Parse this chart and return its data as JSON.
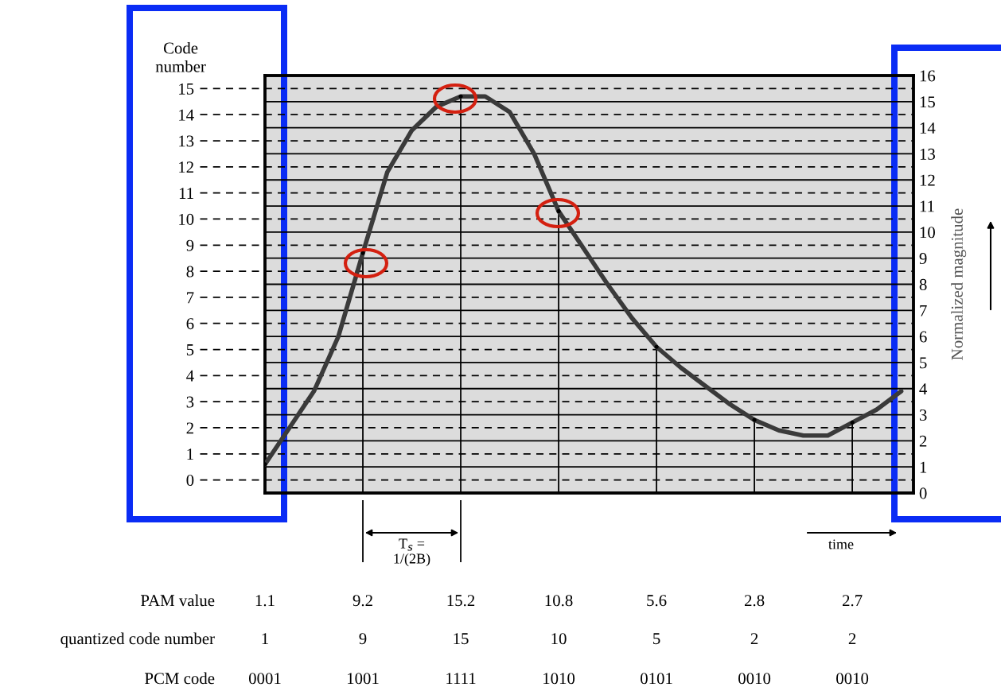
{
  "chart_data": {
    "type": "line",
    "ylabel": "Code\nnumber",
    "y2label": "Normalized magnitude",
    "tick_labels": "y",
    "categories": [
      null,
      null,
      null,
      null,
      null,
      null,
      null,
      null,
      null,
      null,
      null,
      null,
      null,
      null,
      null,
      null,
      null,
      null,
      null,
      null,
      null,
      null,
      null,
      null,
      null,
      null,
      null
    ],
    "ylim": [
      0,
      16
    ],
    "yticks": [
      {
        "value": 0.5,
        "label": "0"
      },
      {
        "value": 1.5,
        "label": "1"
      },
      {
        "value": 2.5,
        "label": "2"
      },
      {
        "value": 3.5,
        "label": "3"
      },
      {
        "value": 4.5,
        "label": "4"
      },
      {
        "value": 5.5,
        "label": "5"
      },
      {
        "value": 6.5,
        "label": "6"
      },
      {
        "value": 7.5,
        "label": "7"
      },
      {
        "value": 8.5,
        "label": "8"
      },
      {
        "value": 9.5,
        "label": "9"
      },
      {
        "value": 10.5,
        "label": "10"
      },
      {
        "value": 11.5,
        "label": "11"
      },
      {
        "value": 12.5,
        "label": "12"
      },
      {
        "value": 13.5,
        "label": "13"
      },
      {
        "value": 14.5,
        "label": "14"
      },
      {
        "value": 15.5,
        "label": "15"
      }
    ],
    "y2lim": [
      0,
      16
    ],
    "y2ticks": [
      0,
      1,
      2,
      3,
      4,
      5,
      6,
      7,
      8,
      9,
      10,
      11,
      12,
      13,
      14,
      15,
      16
    ],
    "grid": true,
    "line_style": "solid",
    "series": [
      {
        "color": "#3a3a3a",
        "values": [
          1.1,
          2.5,
          3.9,
          6.0,
          9.2,
          12.3,
          13.9,
          14.8,
          15.2,
          15.2,
          14.6,
          13.0,
          10.8,
          9.4,
          8.0,
          6.7,
          5.6,
          4.8,
          4.1,
          3.4,
          2.8,
          2.4,
          2.2,
          2.2,
          2.7,
          3.2,
          3.9
        ]
      },
      {
        "type": "lollipop",
        "color": "#000000",
        "values": [
          1.1,
          null,
          null,
          null,
          9.2,
          null,
          null,
          null,
          15.2,
          null,
          null,
          null,
          10.8,
          null,
          null,
          null,
          5.6,
          null,
          null,
          null,
          2.8,
          null,
          null,
          null,
          2.7,
          null,
          null
        ],
        "value_labels": [
          "1.1",
          null,
          null,
          null,
          "9.2",
          null,
          null,
          null,
          "15.2",
          null,
          null,
          null,
          "10.8",
          null,
          null,
          null,
          "5.6",
          null,
          null,
          null,
          "2.8",
          null,
          null,
          null,
          "2.7",
          null,
          null
        ]
      }
    ],
    "annotations": [
      "T$_{s}$ =\n1/(2B)",
      "time",
      "PAM value",
      "quantized code number",
      "1",
      "9",
      "15",
      "10",
      "5",
      "2",
      "2",
      "PCM code",
      "0001",
      "1001",
      "1111",
      "1010",
      "0101",
      "0010",
      "0010"
    ]
  }
}
